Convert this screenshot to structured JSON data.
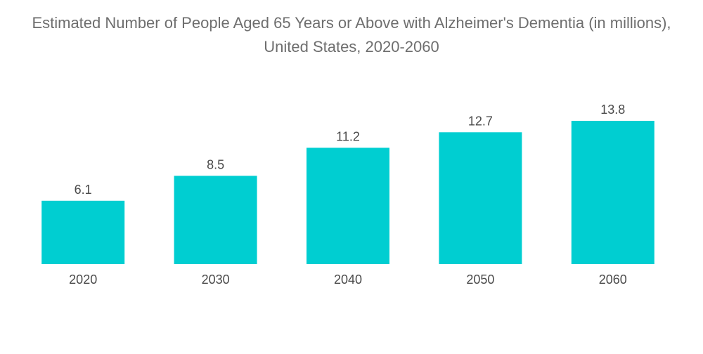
{
  "chart_data": {
    "type": "bar",
    "title": "Estimated Number of People Aged 65 Years or Above with Alzheimer's Dementia (in millions), United States, 2020-2060",
    "categories": [
      "2020",
      "2030",
      "2040",
      "2050",
      "2060"
    ],
    "values": [
      6.1,
      8.5,
      11.2,
      12.7,
      13.8
    ],
    "value_labels": [
      "6.1",
      "8.5",
      "11.2",
      "12.7",
      "13.8"
    ],
    "xlabel": "",
    "ylabel": "",
    "ylim": [
      0,
      13.8
    ],
    "grid": false,
    "legend": "none",
    "bar_color": "#00ced1"
  }
}
